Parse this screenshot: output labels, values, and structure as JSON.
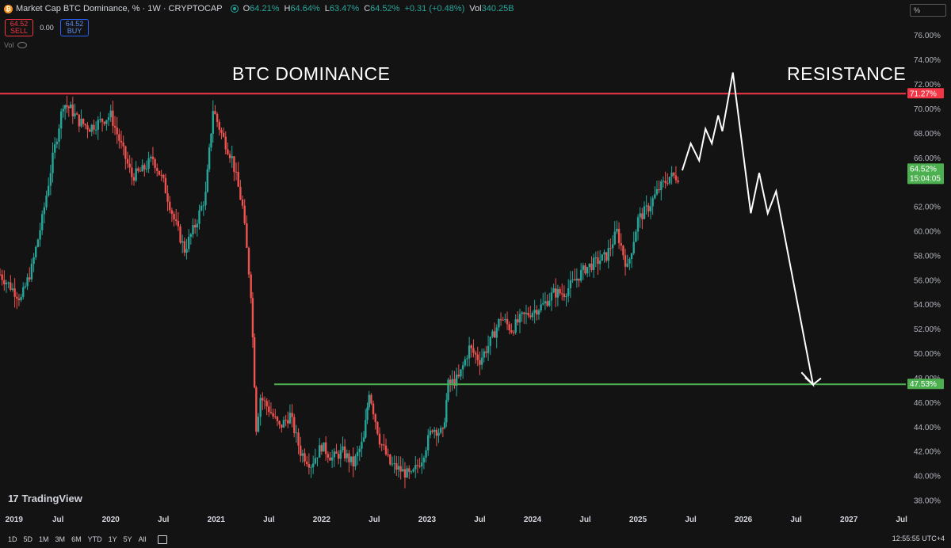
{
  "header": {
    "title": "Market Cap BTC Dominance, % · 1W · CRYPTOCAP",
    "ohlc": [
      {
        "key": "O",
        "value": "64.21%"
      },
      {
        "key": "H",
        "value": "64.64%"
      },
      {
        "key": "L",
        "value": "63.47%"
      },
      {
        "key": "C",
        "value": "64.52%"
      },
      {
        "key": "",
        "value": "+0.31 (+0.48%)"
      },
      {
        "key": "Vol",
        "value": "340.25B"
      }
    ],
    "unit_box": "%"
  },
  "trade": {
    "sell_price": "64.52",
    "sell_label": "SELL",
    "spread": "0.00",
    "buy_price": "64.52",
    "buy_label": "BUY"
  },
  "vol_label": "Vol",
  "annotations": {
    "left_text": "BTC DOMINANCE",
    "right_text": "RESISTANCE"
  },
  "levels": {
    "resistance": {
      "value": 71.27,
      "label": "71.27%",
      "color": "#f23645"
    },
    "support": {
      "value": 47.53,
      "label": "47.53%",
      "color": "#4caf50"
    },
    "current": {
      "value": 64.52,
      "label": "64.52%",
      "timer": "15:04:05",
      "color": "#4caf50"
    }
  },
  "colors": {
    "up": "#26a69a",
    "down": "#ef5350",
    "bg": "#131313",
    "grid": "#2a2a2a"
  },
  "chart_data": {
    "type": "line",
    "title": "Market Cap BTC Dominance, % · 1W · CRYPTOCAP",
    "ylim": [
      37,
      77.5
    ],
    "y_ticks": [
      "76.00%",
      "74.00%",
      "72.00%",
      "70.00%",
      "68.00%",
      "66.00%",
      "62.00%",
      "60.00%",
      "58.00%",
      "56.00%",
      "54.00%",
      "52.00%",
      "50.00%",
      "48.00%",
      "46.00%",
      "44.00%",
      "42.00%",
      "40.00%",
      "38.00%"
    ],
    "y_tick_values": [
      76,
      74,
      72,
      70,
      68,
      66,
      62,
      60,
      58,
      56,
      54,
      52,
      50,
      48,
      46,
      44,
      42,
      40,
      38
    ],
    "x_ticks": [
      "2019",
      "Jul",
      "2020",
      "Jul",
      "2021",
      "Jul",
      "2022",
      "Jul",
      "2023",
      "Jul",
      "2024",
      "Jul",
      "2025",
      "Jul",
      "2026",
      "Jul",
      "2027",
      "Jul"
    ],
    "x_tick_values": [
      2019.0,
      2019.5,
      2020.0,
      2020.5,
      2021.0,
      2021.5,
      2022.0,
      2022.5,
      2023.0,
      2023.5,
      2024.0,
      2024.5,
      2025.0,
      2025.5,
      2026.0,
      2026.5,
      2027.0,
      2027.5
    ],
    "xlim": [
      2018.95,
      2027.54
    ],
    "series": [
      {
        "x": [
          2018.95,
          2019.05,
          2019.15,
          2019.25,
          2019.35,
          2019.45,
          2019.55,
          2019.62,
          2019.7,
          2019.8,
          2019.9,
          2020.0,
          2020.1,
          2020.2,
          2020.3,
          2020.4,
          2020.5,
          2020.6,
          2020.7,
          2020.8,
          2020.9,
          2020.97,
          2021.05,
          2021.15,
          2021.25,
          2021.33,
          2021.38,
          2021.42,
          2021.5,
          2021.6,
          2021.7,
          2021.8,
          2021.9,
          2022.0,
          2022.1,
          2022.2,
          2022.3,
          2022.4,
          2022.45,
          2022.55,
          2022.65,
          2022.75,
          2022.85,
          2022.95,
          2023.05,
          2023.15,
          2023.2,
          2023.3,
          2023.4,
          2023.5,
          2023.6,
          2023.7,
          2023.8,
          2023.9,
          2024.0,
          2024.1,
          2024.2,
          2024.3,
          2024.4,
          2024.5,
          2024.6,
          2024.7,
          2024.8,
          2024.9,
          2025.0,
          2025.1,
          2025.2,
          2025.3,
          2025.4
        ],
        "values": [
          56.5,
          55.5,
          54.5,
          57,
          61,
          66,
          70.5,
          70,
          69,
          68.5,
          69,
          69.5,
          67,
          64.5,
          65,
          66,
          64,
          61,
          58.5,
          60.5,
          63,
          70,
          68,
          66,
          62,
          55,
          44,
          46.5,
          45.5,
          44,
          45,
          42,
          41,
          42.5,
          41.5,
          42,
          41,
          43,
          47,
          43,
          41,
          40.5,
          40,
          41.5,
          44,
          43.5,
          47.5,
          48,
          50.5,
          49.5,
          51,
          53,
          52,
          53,
          53.5,
          54,
          55,
          55,
          56,
          57,
          57.5,
          58,
          60,
          57,
          61,
          62,
          63.5,
          64.5,
          64.5
        ]
      }
    ],
    "projection": {
      "x": [
        2025.42,
        2025.5,
        2025.58,
        2025.64,
        2025.7,
        2025.76,
        2025.8,
        2025.9,
        2026.07,
        2026.15,
        2026.23,
        2026.31,
        2026.66,
        2026.55
      ],
      "values": [
        65,
        67.2,
        65.8,
        68.4,
        67.2,
        69.5,
        68.2,
        73,
        61.5,
        64.8,
        61.5,
        63.3,
        47.5,
        48.5
      ]
    }
  },
  "bottom": {
    "ranges": [
      "1D",
      "5D",
      "1M",
      "3M",
      "6M",
      "YTD",
      "1Y",
      "5Y",
      "All"
    ],
    "clock": "12:55:55 UTC+4"
  },
  "brand": "TradingView"
}
